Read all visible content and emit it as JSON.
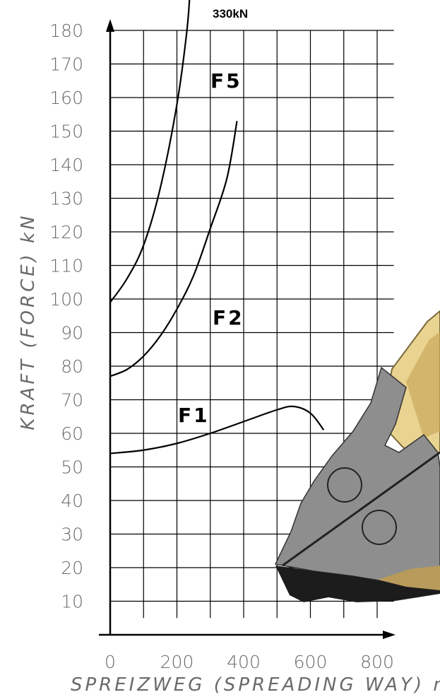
{
  "chart_data": {
    "type": "line",
    "xlabel": "SPREIZWEG (SPREADING WAY) mm",
    "ylabel": "KRAFT (FORCE) kN",
    "xlim": [
      0,
      850
    ],
    "ylim": [
      0,
      190
    ],
    "xticks": [
      0,
      200,
      400,
      600,
      800
    ],
    "yticks": [
      10,
      20,
      30,
      40,
      50,
      60,
      70,
      80,
      90,
      100,
      110,
      120,
      130,
      140,
      150,
      160,
      170,
      180
    ],
    "grid": true,
    "annotation": "330kN",
    "series": [
      {
        "name": "F5",
        "values": [
          [
            0,
            99
          ],
          [
            50,
            106
          ],
          [
            100,
            116
          ],
          [
            150,
            133
          ],
          [
            200,
            158
          ],
          [
            230,
            180
          ],
          [
            240,
            193
          ]
        ]
      },
      {
        "name": "F2",
        "values": [
          [
            0,
            77
          ],
          [
            50,
            79
          ],
          [
            100,
            83
          ],
          [
            150,
            89
          ],
          [
            200,
            97
          ],
          [
            250,
            107
          ],
          [
            300,
            121
          ],
          [
            350,
            136
          ],
          [
            380,
            153
          ]
        ]
      },
      {
        "name": "F1",
        "values": [
          [
            0,
            54
          ],
          [
            100,
            55
          ],
          [
            200,
            57
          ],
          [
            300,
            60
          ],
          [
            400,
            63.5
          ],
          [
            500,
            67
          ],
          [
            550,
            68
          ],
          [
            600,
            66
          ],
          [
            640,
            61
          ]
        ]
      }
    ]
  },
  "colors": {
    "tool_grey": "#8e8e8e",
    "tool_dark": "#1c1c1c",
    "tool_gold": "#e9d391"
  }
}
